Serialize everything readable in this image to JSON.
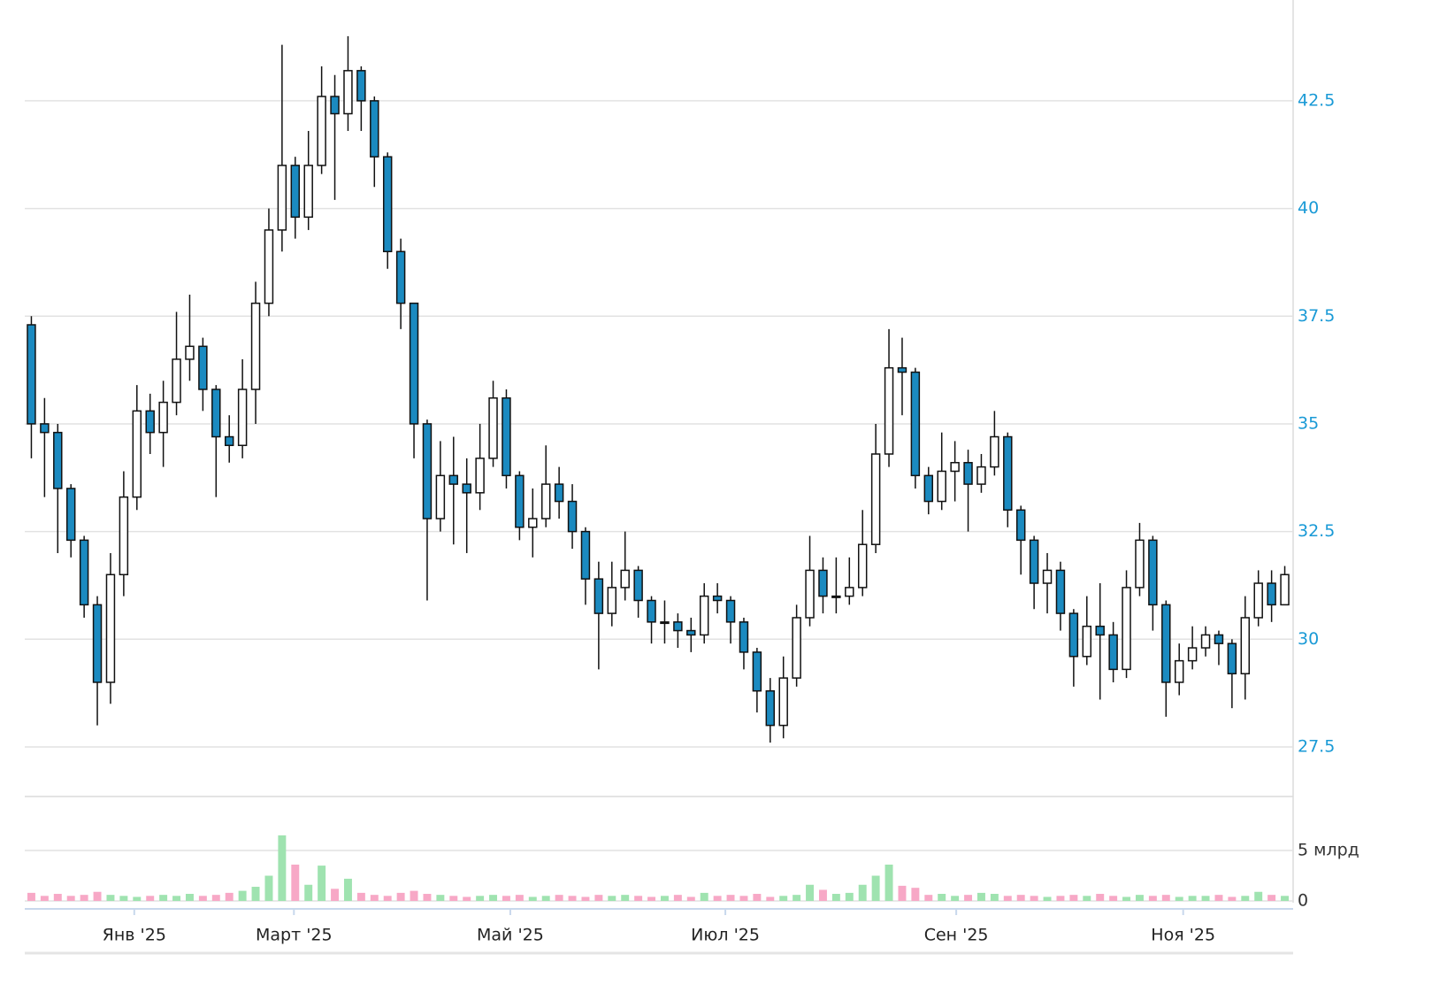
{
  "chart_data": {
    "type": "candlestick",
    "x": [
      0,
      1,
      2,
      3,
      4,
      5,
      6,
      7,
      8,
      9,
      10,
      11,
      12,
      13,
      14,
      15,
      16,
      17,
      18,
      19,
      20,
      21,
      22,
      23,
      24,
      25,
      26,
      27,
      28,
      29,
      30,
      31,
      32,
      33,
      34,
      35,
      36,
      37,
      38,
      39,
      40,
      41,
      42,
      43,
      44,
      45,
      46,
      47,
      48,
      49,
      50,
      51,
      52,
      53,
      54,
      55,
      56,
      57,
      58,
      59,
      60,
      61,
      62,
      63,
      64,
      65,
      66,
      67,
      68,
      69,
      70,
      71,
      72,
      73,
      74,
      75,
      76,
      77,
      78,
      79,
      80,
      81,
      82,
      83,
      84,
      85,
      86,
      87,
      88,
      89,
      90,
      91,
      92,
      93,
      94,
      95
    ],
    "open": [
      37.3,
      35.0,
      34.8,
      33.5,
      32.3,
      30.8,
      29.0,
      31.5,
      33.3,
      35.3,
      34.8,
      35.5,
      36.5,
      36.8,
      35.8,
      34.7,
      34.5,
      35.8,
      37.8,
      39.5,
      41.0,
      39.8,
      41.0,
      42.6,
      42.2,
      43.2,
      42.5,
      41.2,
      39.0,
      37.8,
      35.0,
      32.8,
      33.8,
      33.6,
      33.4,
      34.2,
      35.6,
      33.8,
      32.6,
      32.8,
      33.6,
      33.2,
      32.5,
      31.4,
      30.6,
      31.2,
      31.6,
      30.9,
      30.4,
      30.4,
      30.2,
      30.1,
      31.0,
      30.9,
      30.4,
      29.7,
      28.8,
      28.0,
      29.1,
      30.5,
      31.6,
      31.0,
      31.0,
      31.2,
      32.2,
      34.3,
      36.3,
      36.2,
      33.8,
      33.2,
      33.9,
      34.1,
      33.6,
      34.0,
      34.7,
      33.0,
      32.3,
      31.3,
      31.6,
      30.6,
      29.6,
      30.3,
      30.1,
      29.3,
      31.2,
      32.3,
      30.8,
      29.0,
      29.5,
      29.8,
      30.1,
      29.9,
      29.2,
      30.5,
      31.3,
      30.8
    ],
    "high": [
      37.5,
      35.6,
      35.0,
      33.6,
      32.4,
      31.0,
      32.0,
      33.9,
      35.9,
      35.7,
      36.0,
      37.6,
      38.0,
      37.0,
      35.9,
      35.2,
      36.5,
      38.3,
      40.0,
      43.8,
      41.2,
      41.8,
      43.3,
      43.1,
      44.0,
      43.3,
      42.6,
      41.3,
      39.3,
      37.8,
      35.1,
      34.6,
      34.7,
      34.2,
      35.0,
      36.0,
      35.8,
      33.9,
      33.5,
      34.5,
      34.0,
      33.6,
      32.6,
      31.8,
      31.8,
      32.5,
      31.7,
      31.0,
      30.9,
      30.6,
      30.5,
      31.3,
      31.3,
      31.0,
      30.5,
      29.8,
      29.1,
      29.6,
      30.8,
      32.4,
      31.9,
      31.9,
      31.9,
      33.0,
      35.0,
      37.2,
      37.0,
      36.3,
      34.0,
      34.8,
      34.6,
      34.4,
      34.3,
      35.3,
      34.8,
      33.1,
      32.4,
      32.0,
      31.8,
      30.7,
      31.0,
      31.3,
      30.4,
      31.6,
      32.7,
      32.4,
      30.9,
      29.9,
      30.3,
      30.3,
      30.2,
      30.0,
      31.0,
      31.6,
      31.6,
      31.7
    ],
    "low": [
      34.2,
      33.3,
      32.0,
      31.9,
      30.5,
      28.0,
      28.5,
      31.0,
      33.0,
      34.3,
      34.0,
      35.2,
      36.0,
      35.3,
      33.3,
      34.1,
      34.2,
      35.0,
      37.5,
      39.0,
      39.3,
      39.5,
      40.8,
      40.2,
      41.8,
      41.8,
      40.5,
      38.6,
      37.2,
      34.2,
      30.9,
      32.5,
      32.2,
      32.0,
      33.0,
      34.0,
      33.5,
      32.3,
      31.9,
      32.6,
      32.8,
      32.1,
      30.8,
      29.3,
      30.3,
      30.9,
      30.5,
      29.9,
      29.9,
      29.8,
      29.7,
      29.9,
      30.6,
      29.9,
      29.3,
      28.3,
      27.6,
      27.7,
      28.9,
      30.3,
      30.6,
      30.6,
      30.8,
      31.0,
      32.0,
      34.0,
      35.2,
      33.5,
      32.9,
      33.0,
      33.2,
      32.5,
      33.4,
      33.8,
      32.6,
      31.5,
      30.7,
      30.6,
      30.2,
      28.9,
      29.4,
      28.6,
      29.0,
      29.1,
      31.0,
      30.2,
      28.2,
      28.7,
      29.3,
      29.6,
      29.4,
      28.4,
      28.6,
      30.3,
      30.4,
      30.9
    ],
    "close": [
      35.0,
      34.8,
      33.5,
      32.3,
      30.8,
      29.0,
      31.5,
      33.3,
      35.3,
      34.8,
      35.5,
      36.5,
      36.8,
      35.8,
      34.7,
      34.5,
      35.8,
      37.8,
      39.5,
      41.0,
      39.8,
      41.0,
      42.6,
      42.2,
      43.2,
      42.5,
      41.2,
      39.0,
      37.8,
      35.0,
      32.8,
      33.8,
      33.6,
      33.4,
      34.2,
      35.6,
      33.8,
      32.6,
      32.8,
      33.6,
      33.2,
      32.5,
      31.4,
      30.6,
      31.2,
      31.6,
      30.9,
      30.4,
      30.4,
      30.2,
      30.1,
      31.0,
      30.9,
      30.4,
      29.7,
      28.8,
      28.0,
      29.1,
      30.5,
      31.6,
      31.0,
      31.0,
      31.2,
      32.2,
      34.3,
      36.3,
      36.2,
      33.8,
      33.2,
      33.9,
      34.1,
      33.6,
      34.0,
      34.7,
      33.0,
      32.3,
      31.3,
      31.6,
      30.6,
      29.6,
      30.3,
      30.1,
      29.3,
      31.2,
      32.3,
      30.8,
      29.0,
      29.5,
      29.8,
      30.1,
      29.9,
      29.2,
      30.5,
      31.3,
      30.8,
      31.5
    ],
    "volume": [
      0.8,
      0.5,
      0.7,
      0.5,
      0.6,
      0.9,
      0.6,
      0.5,
      0.4,
      0.5,
      0.6,
      0.5,
      0.7,
      0.5,
      0.6,
      0.8,
      1.0,
      1.4,
      2.5,
      6.5,
      3.6,
      1.6,
      3.5,
      1.2,
      2.2,
      0.8,
      0.6,
      0.5,
      0.8,
      1.0,
      0.7,
      0.6,
      0.5,
      0.4,
      0.5,
      0.6,
      0.5,
      0.6,
      0.4,
      0.5,
      0.6,
      0.5,
      0.4,
      0.6,
      0.5,
      0.6,
      0.5,
      0.4,
      0.5,
      0.6,
      0.4,
      0.8,
      0.5,
      0.6,
      0.5,
      0.7,
      0.4,
      0.5,
      0.6,
      1.6,
      1.1,
      0.7,
      0.8,
      1.6,
      2.5,
      3.6,
      1.5,
      1.3,
      0.6,
      0.7,
      0.5,
      0.6,
      0.8,
      0.7,
      0.5,
      0.6,
      0.5,
      0.4,
      0.5,
      0.6,
      0.5,
      0.7,
      0.5,
      0.4,
      0.6,
      0.5,
      0.6,
      0.4,
      0.5,
      0.5,
      0.6,
      0.4,
      0.5,
      0.9,
      0.6,
      0.5
    ],
    "xlim": [
      -0.5,
      95.5
    ],
    "xticks": [
      {
        "value": 7.8,
        "label": "Янв '25"
      },
      {
        "value": 19.9,
        "label": "Март '25"
      },
      {
        "value": 36.3,
        "label": "Май '25"
      },
      {
        "value": 52.6,
        "label": "Июл '25"
      },
      {
        "value": 70.1,
        "label": "Сен '25"
      },
      {
        "value": 87.3,
        "label": "Ноя '25"
      }
    ],
    "ylim": [
      26.76,
      44.84
    ],
    "yticks": [
      27.5,
      30,
      32.5,
      35,
      37.5,
      40,
      42.5
    ],
    "volume_ylim": [
      0,
      10.35
    ],
    "volume_yticks": [
      0,
      {
        "value": 5,
        "label": "5 млрд"
      }
    ],
    "grid": true,
    "up_color": "#ffffff",
    "down_color": "#1b8ac0",
    "volume_up_color": "#9fe3b0",
    "volume_down_color": "#f7a8c6",
    "ytick_color": "#1a9ad6"
  }
}
